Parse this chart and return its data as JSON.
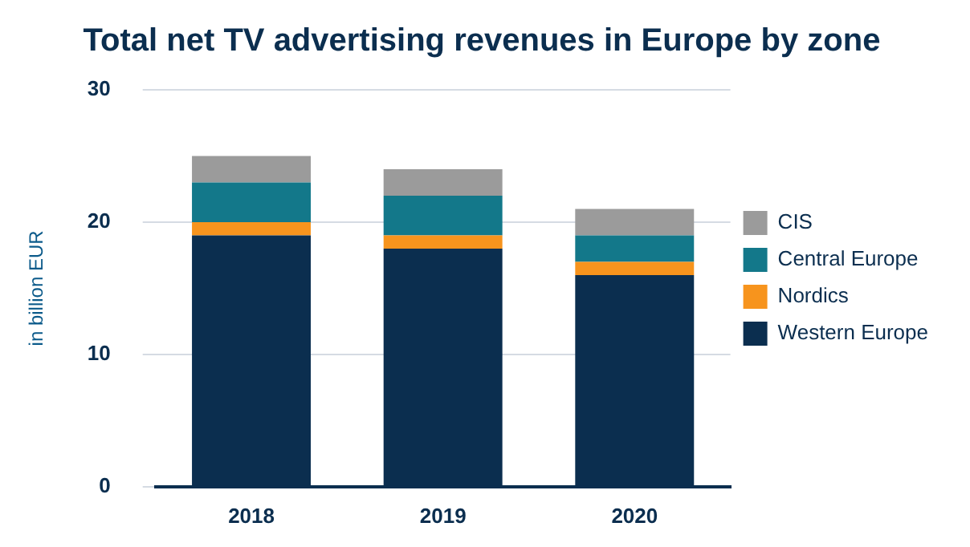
{
  "chart_data": {
    "type": "bar",
    "title": "Total net TV advertising revenues in Europe by zone",
    "ylabel": "in billion EUR",
    "categories": [
      "2018",
      "2019",
      "2020"
    ],
    "series": [
      {
        "name": "Western Europe",
        "color": "#0b2e4f",
        "values": [
          19,
          18,
          16
        ]
      },
      {
        "name": "Nordics",
        "color": "#f7941d",
        "values": [
          1,
          1,
          1
        ]
      },
      {
        "name": "Central Europe",
        "color": "#13788a",
        "values": [
          3,
          3,
          2
        ]
      },
      {
        "name": "CIS",
        "color": "#9b9b9b",
        "values": [
          2,
          2,
          2
        ]
      }
    ],
    "stacked": true,
    "ylim": [
      0,
      30
    ],
    "yticks": [
      0,
      10,
      20,
      30
    ],
    "grid": "y",
    "legend": "right"
  }
}
